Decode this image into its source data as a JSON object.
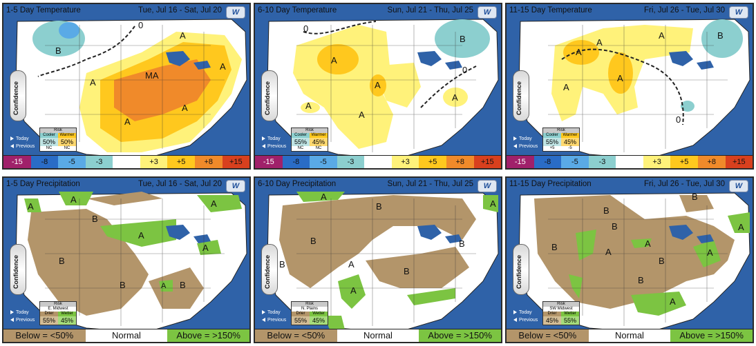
{
  "temperature_panels": [
    {
      "title": "1-5 Day Temperature",
      "dates": "Tue, Jul 16 - Sat, Jul 20",
      "risk": {
        "header": "Risk",
        "label_left": "Cooler",
        "label_right": "Warmer",
        "value_left": "50%",
        "value_right": "50%",
        "foot_left": "NC",
        "foot_right": "NC"
      }
    },
    {
      "title": "6-10 Day Temperature",
      "dates": "Sun, Jul 21 - Thu, Jul 25",
      "risk": {
        "header": "Risk",
        "label_left": "Cooler",
        "label_right": "Warmer",
        "value_left": "55%",
        "value_right": "45%",
        "foot_left": "NC",
        "foot_right": "NC"
      }
    },
    {
      "title": "11-15 Day Temperature",
      "dates": "Fri, Jul 26 - Tue, Jul 30",
      "risk": {
        "header": "Risk",
        "label_left": "Cooler",
        "label_right": "Warmer",
        "value_left": "55%",
        "value_right": "45%",
        "foot_left": "+5",
        "foot_right": "-5"
      }
    }
  ],
  "precipitation_panels": [
    {
      "title": "1-5 Day Precipitation",
      "dates": "Tue, Jul 16 - Sat, Jul 20",
      "risk": {
        "header": "Risk",
        "region": "E. Midwest",
        "label_left": "Drier",
        "label_right": "Wetter",
        "value_left": "55%",
        "value_right": "45%"
      }
    },
    {
      "title": "6-10 Day Precipitation",
      "dates": "Sun, Jul 21 - Thu, Jul 25",
      "risk": {
        "header": "Risk",
        "region": "N. Plains",
        "label_left": "Drier",
        "label_right": "Wetter",
        "value_left": "55%",
        "value_right": "45%"
      }
    },
    {
      "title": "11-15 Day Precipitation",
      "dates": "Fri, Jul 26 - Tue, Jul 30",
      "risk": {
        "header": "Risk",
        "region": "SW Midwest",
        "label_left": "Drier",
        "label_right": "Wetter",
        "value_left": "45%",
        "value_right": "55%"
      }
    }
  ],
  "common": {
    "logo": "W",
    "confidence_label": "Confidence",
    "nav_today": "Today",
    "nav_previous": "Previous",
    "temp_scale": [
      "-15",
      "-8",
      "-5",
      "-3",
      "",
      "+3",
      "+5",
      "+8",
      "+15"
    ],
    "temp_scale_colors": [
      "#a0206a",
      "#2a6cc6",
      "#5aaae6",
      "#8ccfcf",
      "#ffffff",
      "#fff27a",
      "#ffc81e",
      "#f08a2a",
      "#d8401e"
    ],
    "precip_scale": [
      "Below = <50%",
      "Normal",
      "Above = >150%"
    ],
    "precip_scale_colors": [
      "#b3956a",
      "#ffffff",
      "#7cc442"
    ],
    "colors": {
      "ocean": "#2f62a8",
      "land": "#ffffff",
      "anomaly_cool": "#8ccfcf",
      "warm_light": "#fff27a",
      "warm_mid": "#ffc81e",
      "warm_high": "#f08a2a",
      "dry": "#b3956a",
      "wet": "#7cc442",
      "lakes": "#2f62a8"
    }
  },
  "map_labels": {
    "t1": [
      "A",
      "B",
      "MA",
      "A",
      "A",
      "A",
      "A",
      "0"
    ],
    "t2": [
      "A",
      "A",
      "A",
      "A",
      "A",
      "B",
      "0",
      "0"
    ],
    "t3": [
      "A",
      "A",
      "A",
      "A",
      "A",
      "B",
      "0"
    ],
    "p1": [
      "A",
      "A",
      "B",
      "A",
      "A",
      "B",
      "B",
      "B",
      "A",
      "A"
    ],
    "p2": [
      "A",
      "B",
      "B",
      "B",
      "A",
      "A",
      "B",
      "B",
      "A"
    ],
    "p3": [
      "B",
      "B",
      "B",
      "B",
      "A",
      "A",
      "B",
      "B",
      "A",
      "A",
      "A"
    ]
  }
}
